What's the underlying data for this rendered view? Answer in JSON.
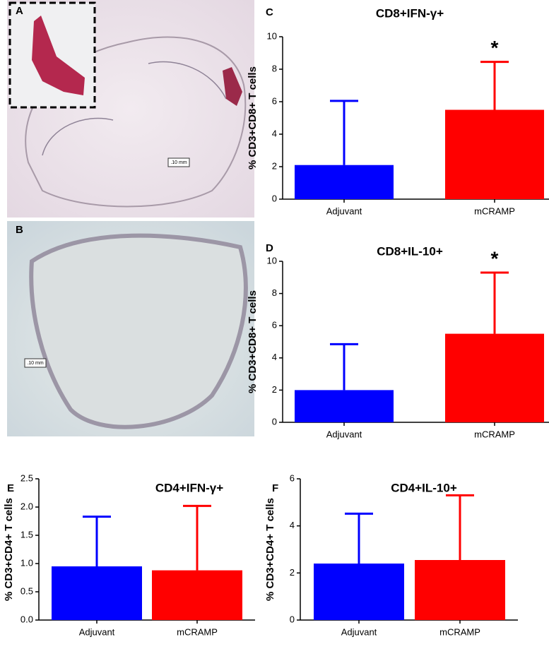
{
  "panels": [
    {
      "label": "A",
      "scale_bar": ".10 mm"
    },
    {
      "label": "B",
      "scale_bar": ".10 mm"
    }
  ],
  "chart_data": [
    {
      "type": "bar",
      "label": "C",
      "title": "CD8+IFN-γ+",
      "ylabel": "% CD3+CD8+ T cells",
      "categories": [
        "Adjuvant",
        "mCRAMP"
      ],
      "values": [
        2.1,
        5.5
      ],
      "errors": [
        3.95,
        2.95
      ],
      "colors": [
        "#0000ff",
        "#ff0000"
      ],
      "ylim": [
        0,
        10
      ],
      "yticks": [
        0,
        2,
        4,
        6,
        8,
        10
      ],
      "annotations": [
        {
          "category": 1,
          "text": "*"
        }
      ]
    },
    {
      "type": "bar",
      "label": "D",
      "title": "CD8+IL-10+",
      "ylabel": "% CD3+CD8+ T cells",
      "categories": [
        "Adjuvant",
        "mCRAMP"
      ],
      "values": [
        2.0,
        5.5
      ],
      "errors": [
        2.85,
        3.8
      ],
      "colors": [
        "#0000ff",
        "#ff0000"
      ],
      "ylim": [
        0,
        10
      ],
      "yticks": [
        0,
        2,
        4,
        6,
        8,
        10
      ],
      "annotations": [
        {
          "category": 1,
          "text": "*"
        }
      ]
    },
    {
      "type": "bar",
      "label": "E",
      "title": "CD4+IFN-γ+",
      "ylabel": "% CD3+CD4+ T cells",
      "categories": [
        "Adjuvant",
        "mCRAMP"
      ],
      "values": [
        0.95,
        0.88
      ],
      "errors": [
        0.88,
        1.14
      ],
      "colors": [
        "#0000ff",
        "#ff0000"
      ],
      "ylim": [
        0,
        2.5
      ],
      "yticks": [
        {
          "value": 0,
          "label": "0.0"
        },
        {
          "value": 0.5,
          "label": "0.5"
        },
        {
          "value": 1,
          "label": "1.0"
        },
        {
          "value": 1.5,
          "label": "1.5"
        },
        {
          "value": 2,
          "label": "2.0"
        },
        {
          "value": 2.5,
          "label": "2.5"
        }
      ]
    },
    {
      "type": "bar",
      "label": "F",
      "title": "CD4+IL-10+",
      "ylabel": "% CD3+CD4+ T cells",
      "categories": [
        "Adjuvant",
        "mCRAMP"
      ],
      "values": [
        2.4,
        2.55
      ],
      "errors": [
        2.12,
        2.75
      ],
      "colors": [
        "#0000ff",
        "#ff0000"
      ],
      "ylim": [
        0,
        6
      ],
      "yticks": [
        0,
        2,
        4,
        6
      ]
    }
  ]
}
